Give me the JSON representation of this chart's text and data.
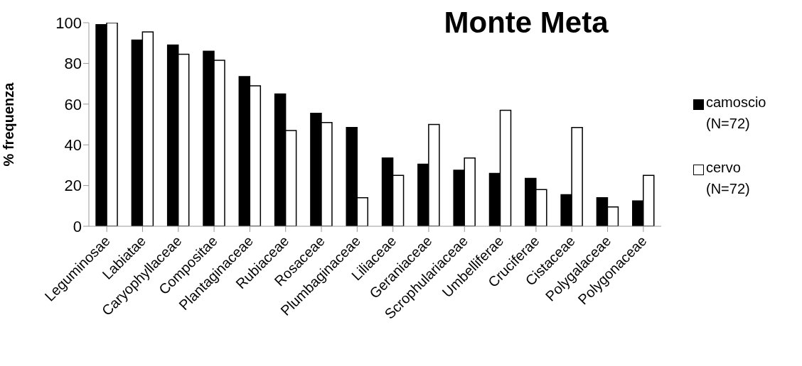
{
  "chart_data": {
    "type": "bar",
    "title": "Monte Meta",
    "ylabel": "% frequenza",
    "categories": [
      "Leguminosae",
      "Labiatae",
      "Caryophyllaceae",
      "Compositae",
      "Plantaginaceae",
      "Rubiaceae",
      "Rosaceae",
      "Plumbaginaceae",
      "Liliaceae",
      "Geraniaceae",
      "Scrophulariaceae",
      "Umbelliferae",
      "Cruciferae",
      "Cistaceae",
      "Polygalaceae",
      "Polygonaceae"
    ],
    "series": [
      {
        "name": "camoscio (N=72)",
        "color": "#000000",
        "values": [
          99,
          91.5,
          89,
          86,
          73.5,
          65,
          55.5,
          48.5,
          33.5,
          30.5,
          27.5,
          26,
          23.5,
          15.5,
          14,
          12.5
        ]
      },
      {
        "name": "cervo (N=72)",
        "color": "#ffffff",
        "values": [
          100,
          95.5,
          84.5,
          81.5,
          69,
          47,
          51,
          14,
          25,
          50,
          33.5,
          57,
          18,
          48.5,
          9.5,
          25
        ]
      }
    ],
    "ylim": [
      0,
      100
    ],
    "yticks": [
      0,
      20,
      40,
      60,
      80,
      100
    ],
    "grid": false,
    "legend": "right"
  }
}
